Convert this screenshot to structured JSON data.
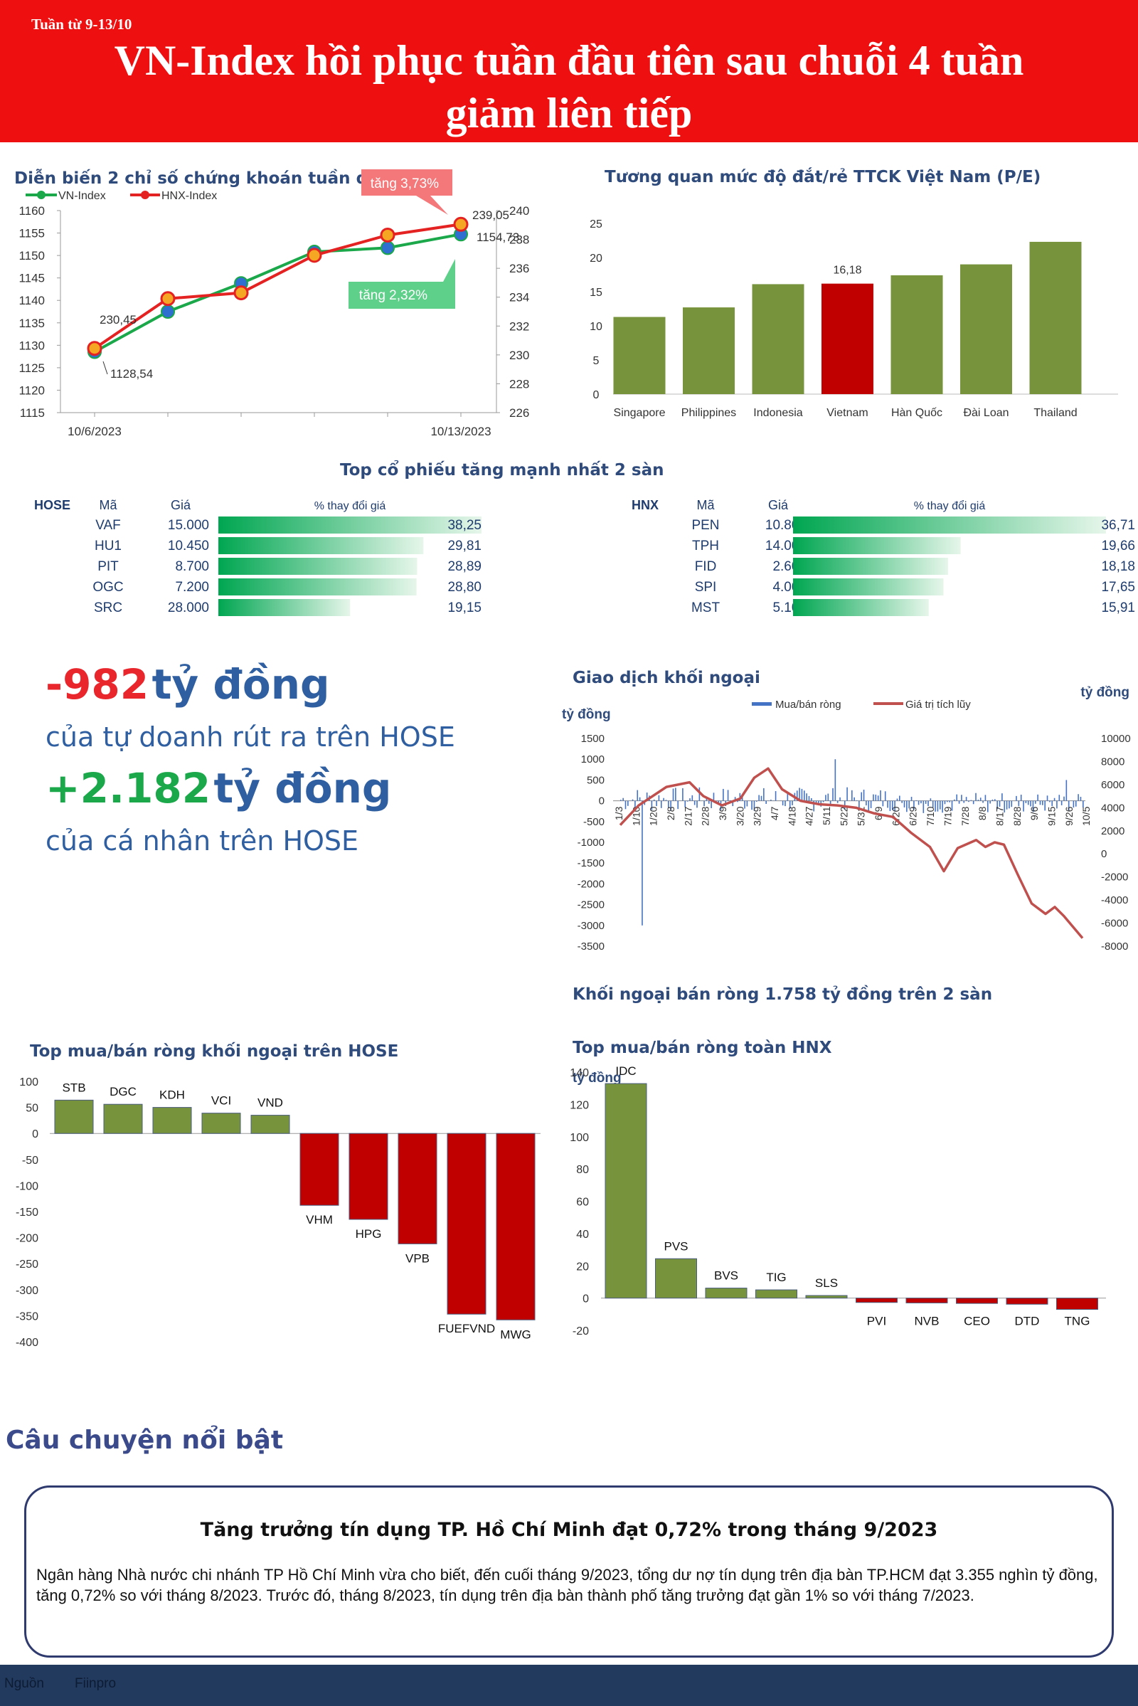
{
  "header": {
    "week": "Tuần từ 9-13/10",
    "title_line1": "VN-Index hồi phục tuần đầu tiên sau chuỗi 4 tuần",
    "title_line2": "giảm liên tiếp"
  },
  "index_chart": {
    "title": "Diễn biến 2 chỉ số chứng khoán tuần qua",
    "callout_hnx": "tăng 3,73%",
    "callout_vn": "tăng 2,32%",
    "first_vn_label": "1128,54",
    "first_hnx_label": "230,45",
    "last_vn_label": "1154,73",
    "last_hnx_label": "239,05",
    "date_start": "10/6/2023",
    "date_end": "10/13/2023"
  },
  "pe_chart_title": "Tương quan mức độ đắt/rẻ TTCK Việt Nam (P/E)",
  "top_gainers": {
    "title": "Top cổ phiếu tăng mạnh nhất 2 sàn",
    "hose": {
      "exchange": "HOSE",
      "col_code": "Mã",
      "col_price": "Giá",
      "col_change": "% thay đổi giá",
      "rows": [
        {
          "code": "VAF",
          "price": "15.000",
          "change": "38,25",
          "value": 38.25
        },
        {
          "code": "HU1",
          "price": "10.450",
          "change": "29,81",
          "value": 29.81
        },
        {
          "code": "PIT",
          "price": "8.700",
          "change": "28,89",
          "value": 28.89
        },
        {
          "code": "OGC",
          "price": "7.200",
          "change": "28,80",
          "value": 28.8
        },
        {
          "code": "SRC",
          "price": "28.000",
          "change": "19,15",
          "value": 19.15
        }
      ]
    },
    "hnx": {
      "exchange": "HNX",
      "col_code": "Mã",
      "col_price": "Giá",
      "col_change": "% thay đổi giá",
      "rows": [
        {
          "code": "PEN",
          "price": "10.800",
          "change": "36,71",
          "value": 36.71
        },
        {
          "code": "TPH",
          "price": "14.000",
          "change": "19,66",
          "value": 19.66
        },
        {
          "code": "FID",
          "price": "2.600",
          "change": "18,18",
          "value": 18.18
        },
        {
          "code": "SPI",
          "price": "4.000",
          "change": "17,65",
          "value": 17.65
        },
        {
          "code": "MST",
          "price": "5.100",
          "change": "15,91",
          "value": 15.91
        }
      ]
    }
  },
  "flows": {
    "prop_value": "-982",
    "prop_unit": "tỷ đồng",
    "prop_desc": "của tự doanh rút ra trên HOSE",
    "retail_value": "+2.182",
    "retail_unit": "tỷ đồng",
    "retail_desc": "của cá nhân trên HOSE"
  },
  "foreign": {
    "title": "Giao dịch khối ngoại",
    "unit_left": "tỷ đồng",
    "unit_right": "tỷ đồng",
    "summary": "Khối ngoại bán ròng 1.758 tỷ đồng trên 2 sàn"
  },
  "hose_foreign_title": "Top mua/bán ròng khối ngoại trên HOSE",
  "hnx_foreign_title": "Top mua/bán ròng toàn HNX",
  "hnx_foreign_unit": "tỷ đồng",
  "story": {
    "section_title": "Câu chuyện nổi bật",
    "headline": "Tăng trưởng tín dụng TP. Hồ Chí Minh đạt 0,72% trong tháng 9/2023",
    "body": "Ngân hàng Nhà nước chi nhánh TP Hồ Chí Minh vừa cho biết, đến cuối tháng 9/2023, tổng dư nợ tín dụng trên địa bàn TP.HCM đạt 3.355 nghìn tỷ đồng, tăng 0,72% so với tháng 8/2023. Trước đó, tháng 8/2023, tín dụng trên địa bàn thành phố tăng trưởng đạt gần 1% so với tháng 7/2023."
  },
  "footer": {
    "source_label": "Nguồn",
    "source_value": "Fiinpro"
  },
  "colors": {
    "red": "#c00000",
    "green": "#77933c",
    "vn_line": "#1aa84a",
    "hnx_line": "#e52222",
    "bar_green_start": "#00a651",
    "foreign_bar": "#4472c4",
    "foreign_line": "#c0504d"
  },
  "chart_data": [
    {
      "type": "line",
      "x": [
        "10/6/2023",
        "10/9/2023",
        "10/10/2023",
        "10/11/2023",
        "10/12/2023",
        "10/13/2023"
      ],
      "series": [
        {
          "name": "VN-Index",
          "axis": "left",
          "values": [
            1128.54,
            1137.5,
            1143.8,
            1150.8,
            1151.7,
            1154.73
          ]
        },
        {
          "name": "HNX-Index",
          "axis": "right",
          "values": [
            230.45,
            233.9,
            234.3,
            236.9,
            238.3,
            239.05
          ]
        }
      ],
      "ylim_left": [
        1115,
        1160
      ],
      "yticks_left": [
        1115,
        1120,
        1125,
        1130,
        1135,
        1140,
        1145,
        1150,
        1155,
        1160
      ],
      "ylim_right": [
        226,
        240
      ],
      "yticks_right": [
        226,
        228,
        230,
        232,
        234,
        236,
        238,
        240
      ]
    },
    {
      "type": "bar",
      "categories": [
        "Singapore",
        "Philippines",
        "Indonesia",
        "Vietnam",
        "Hàn Quốc",
        "Đài Loan",
        "Thailand"
      ],
      "values": [
        11.3,
        12.7,
        16.1,
        16.18,
        17.4,
        19.0,
        22.3
      ],
      "highlight": "Vietnam",
      "highlight_label": "16,18",
      "ylim": [
        0,
        25
      ],
      "yticks": [
        0,
        5,
        10,
        15,
        20,
        25
      ]
    },
    {
      "type": "bar",
      "legend": [
        "Mua/bán ròng",
        "Giá trị tích lũy"
      ],
      "xticks": [
        "1/3",
        "1/10",
        "1/20",
        "2/8",
        "2/17",
        "2/28",
        "3/9",
        "3/20",
        "3/29",
        "4/7",
        "4/18",
        "4/27",
        "5/11",
        "5/22",
        "5/31",
        "6/9",
        "6/20",
        "6/29",
        "7/10",
        "7/19",
        "7/28",
        "8/8",
        "8/17",
        "8/28",
        "9/6",
        "9/15",
        "9/26",
        "10/5"
      ],
      "ylim_left": [
        -3500,
        1500
      ],
      "yticks_left": [
        -3500,
        -3000,
        -2500,
        -2000,
        -1500,
        -1000,
        -500,
        0,
        500,
        1000,
        1500
      ],
      "ylim_right": [
        -8000,
        10000
      ],
      "yticks_right": [
        -8000,
        -6000,
        -4000,
        -2000,
        0,
        2000,
        4000,
        6000,
        8000,
        10000
      ],
      "cumulative_keypoints": [
        [
          0,
          2500
        ],
        [
          0.04,
          4200
        ],
        [
          0.1,
          5800
        ],
        [
          0.15,
          6200
        ],
        [
          0.18,
          5000
        ],
        [
          0.22,
          4200
        ],
        [
          0.26,
          4800
        ],
        [
          0.29,
          6600
        ],
        [
          0.32,
          7400
        ],
        [
          0.35,
          5600
        ],
        [
          0.39,
          4600
        ],
        [
          0.43,
          4300
        ],
        [
          0.47,
          4200
        ],
        [
          0.51,
          4000
        ],
        [
          0.55,
          3500
        ],
        [
          0.59,
          3200
        ],
        [
          0.63,
          1800
        ],
        [
          0.67,
          600
        ],
        [
          0.7,
          -1500
        ],
        [
          0.73,
          500
        ],
        [
          0.77,
          1200
        ],
        [
          0.79,
          600
        ],
        [
          0.81,
          1000
        ],
        [
          0.83,
          800
        ],
        [
          0.86,
          -1800
        ],
        [
          0.89,
          -4300
        ],
        [
          0.92,
          -5200
        ],
        [
          0.94,
          -4600
        ],
        [
          0.96,
          -5400
        ],
        [
          1.0,
          -7300
        ]
      ]
    },
    {
      "type": "bar",
      "categories": [
        "STB",
        "DGC",
        "KDH",
        "VCI",
        "VND",
        "VHM",
        "HPG",
        "VPB",
        "FUEFVND",
        "MWG"
      ],
      "values": [
        64,
        56,
        50,
        39,
        35,
        -138,
        -165,
        -212,
        -347,
        -358
      ],
      "ylim": [
        -400,
        100
      ],
      "yticks": [
        -400,
        -350,
        -300,
        -250,
        -200,
        -150,
        -100,
        -50,
        0,
        50,
        100
      ]
    },
    {
      "type": "bar",
      "categories": [
        "IDC",
        "PVS",
        "BVS",
        "TIG",
        "SLS",
        "PVI",
        "NVB",
        "CEO",
        "DTD",
        "TNG"
      ],
      "values": [
        132.9,
        24.4,
        6.2,
        5.1,
        1.6,
        -2.7,
        -3.0,
        -3.3,
        -3.8,
        -7.0
      ],
      "ylim": [
        -20,
        140
      ],
      "yticks": [
        -20,
        0,
        20,
        40,
        60,
        80,
        100,
        120,
        140
      ]
    }
  ]
}
